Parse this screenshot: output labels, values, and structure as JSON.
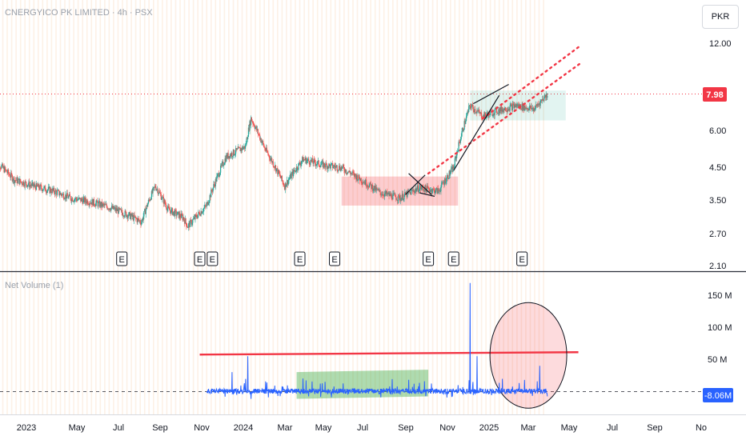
{
  "header": {
    "title": "CNERGYICO PK LIMITED · 4h · PSX",
    "currency": "PKR"
  },
  "volume_pane": {
    "title": "Net Volume (1)"
  },
  "earnings_label": "E",
  "colors": {
    "up": "#26a69a",
    "down": "#ef5350",
    "volume_line": "#2962ff",
    "price_badge": "#f23645",
    "volume_badge": "#2962ff"
  },
  "chart_data": [
    {
      "type": "line",
      "series": [
        {
          "name": "",
          "points": [
            [
              "2022-11-01",
              4.75
            ],
            [
              "2022-12-01",
              4.1
            ],
            [
              "2023-01-01",
              3.9
            ],
            [
              "2023-02-01",
              3.75
            ],
            [
              "2023-03-01",
              3.55
            ],
            [
              "2023-04-01",
              3.45
            ],
            [
              "2023-05-01",
              3.3
            ],
            [
              "2023-06-01",
              3.1
            ],
            [
              "2023-06-20",
              2.95
            ],
            [
              "2023-07-01",
              3.45
            ],
            [
              "2023-07-12",
              3.9
            ],
            [
              "2023-08-01",
              3.25
            ],
            [
              "2023-08-25",
              3.05
            ],
            [
              "2023-09-01",
              2.85
            ],
            [
              "2023-10-01",
              3.35
            ],
            [
              "2023-11-01",
              4.9
            ],
            [
              "2023-12-01",
              5.3
            ],
            [
              "2023-12-10",
              6.6
            ],
            [
              "2024-01-01",
              5.2
            ],
            [
              "2024-02-01",
              3.9
            ],
            [
              "2024-03-01",
              4.8
            ],
            [
              "2024-04-01",
              4.6
            ],
            [
              "2024-05-01",
              4.5
            ],
            [
              "2024-06-01",
              4.1
            ],
            [
              "2024-07-01",
              3.7
            ],
            [
              "2024-08-01",
              3.55
            ],
            [
              "2024-09-01",
              3.85
            ],
            [
              "2024-10-01",
              3.75
            ],
            [
              "2024-10-25",
              4.5
            ],
            [
              "2024-11-20",
              7.3
            ],
            [
              "2024-12-10",
              6.7
            ],
            [
              "2025-01-01",
              7.0
            ],
            [
              "2025-02-01",
              7.3
            ],
            [
              "2025-03-01",
              7.1
            ],
            [
              "2025-03-22",
              7.98
            ]
          ]
        }
      ],
      "y_ticks": [
        "12.00",
        "7.98",
        "6.00",
        "4.50",
        "3.50",
        "2.70",
        "2.10"
      ],
      "y_scale": "log",
      "ylim": [
        2.1,
        12.0
      ],
      "current_price": "7.98",
      "earnings_dates": [
        "2023-05-20",
        "2023-09-20",
        "2023-10-10",
        "2024-02-25",
        "2024-04-20",
        "2024-09-15",
        "2024-10-25",
        "2025-02-10"
      ],
      "annotations": [
        {
          "type": "box",
          "color": "red",
          "x": [
            "2024-05-01",
            "2024-11-01"
          ],
          "y": [
            3.35,
            4.2
          ]
        },
        {
          "type": "box",
          "color": "teal",
          "x": [
            "2024-11-20",
            "2025-04-20"
          ],
          "y": [
            6.5,
            8.2
          ]
        },
        {
          "type": "dotted-line",
          "color": "red",
          "from": [
            "2024-09-15",
            4.3
          ],
          "to": [
            "2025-05-15",
            10.2
          ]
        },
        {
          "type": "dotted-line",
          "color": "red",
          "from": [
            "2024-12-10",
            6.6
          ],
          "to": [
            "2025-05-15",
            11.7
          ]
        }
      ]
    },
    {
      "type": "line",
      "series": [
        {
          "name": "Net Volume (1)",
          "points": [
            [
              "2023-10-01",
              0
            ],
            [
              "2023-11-10",
              30
            ],
            [
              "2023-12-05",
              55
            ],
            [
              "2023-12-10",
              -12
            ],
            [
              "2024-03-01",
              20
            ],
            [
              "2024-03-10",
              -8
            ],
            [
              "2024-08-15",
              18
            ],
            [
              "2024-09-20",
              12
            ],
            [
              "2024-11-20",
              170
            ],
            [
              "2024-11-25",
              -6
            ],
            [
              "2024-12-01",
              55
            ],
            [
              "2025-03-10",
              40
            ],
            [
              "2025-03-22",
              -8.06
            ]
          ]
        }
      ],
      "y_ticks": [
        "150 M",
        "100 M",
        "50 M",
        "-8.06M"
      ],
      "ylim": [
        -40,
        170
      ],
      "current_value": "-8.06M",
      "x_ticks": [
        "2023",
        "May",
        "Jul",
        "Sep",
        "Nov",
        "2024",
        "Mar",
        "May",
        "Jul",
        "Sep",
        "Nov",
        "2025",
        "Mar",
        "May",
        "Jul",
        "Sep",
        "No"
      ],
      "annotations": [
        {
          "type": "horizontal-line",
          "color": "red",
          "x": [
            "2023-09-20",
            "2025-05-10"
          ],
          "y": 60
        },
        {
          "type": "box",
          "color": "green",
          "x": [
            "2024-02-20",
            "2024-09-15"
          ],
          "y": [
            -12,
            30
          ]
        },
        {
          "type": "circle",
          "color": "red",
          "center": [
            "2025-02-20",
            60
          ],
          "note": "highlight"
        }
      ]
    }
  ]
}
